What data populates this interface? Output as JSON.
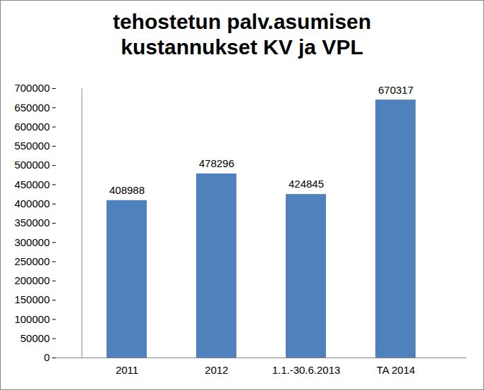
{
  "chart_data": {
    "type": "bar",
    "title": "tehostetun palv.asumisen\nkustannukset KV ja VPL",
    "categories": [
      "2011",
      "2012",
      "1.1.-30.6.2013",
      "TA 2014"
    ],
    "values": [
      408988,
      478296,
      424845,
      670317
    ],
    "color": "#4f81bd",
    "ylim": [
      0,
      700000
    ],
    "yticks": [
      0,
      50000,
      100000,
      150000,
      200000,
      250000,
      300000,
      350000,
      400000,
      450000,
      500000,
      550000,
      600000,
      650000,
      700000
    ],
    "grid": false,
    "data_labels": true
  }
}
